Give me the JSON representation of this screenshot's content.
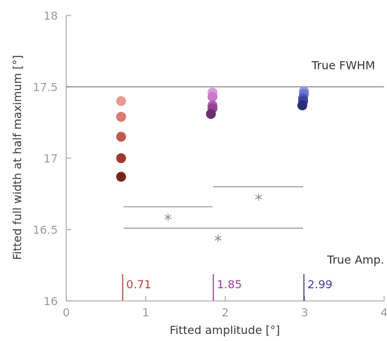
{
  "chart_data": {
    "type": "scatter",
    "xlabel": "Fitted amplitude [°]",
    "ylabel": "Fitted full width at half maximum [°]",
    "xlim": [
      0,
      4
    ],
    "ylim": [
      16,
      18
    ],
    "x_ticks": [
      0,
      1,
      2,
      3,
      4
    ],
    "y_ticks": [
      16,
      16.5,
      17,
      17.5,
      18
    ],
    "x_tick_labels": [
      "0",
      "1",
      "2",
      "3",
      "4"
    ],
    "y_tick_labels": [
      "16",
      "16.5",
      "17",
      "17.5",
      "18"
    ],
    "grid": false,
    "reference_line": {
      "label": "True FWHM",
      "y": 17.5
    },
    "true_amplitude": {
      "label": "True Amp.",
      "markers": [
        {
          "x": 0.71,
          "label": "0.71",
          "color": "#b5423c"
        },
        {
          "x": 1.85,
          "label": "1.85",
          "color": "#9a3d9a"
        },
        {
          "x": 2.99,
          "label": "2.99",
          "color": "#3a3f9a"
        }
      ]
    },
    "series": [
      {
        "color": "#b5423c",
        "points": [
          {
            "x": 0.69,
            "y": 17.4,
            "color": "#e89a90"
          },
          {
            "x": 0.69,
            "y": 17.29,
            "color": "#d9796f"
          },
          {
            "x": 0.69,
            "y": 17.15,
            "color": "#c05a50"
          },
          {
            "x": 0.69,
            "y": 17.0,
            "color": "#a0392f"
          },
          {
            "x": 0.69,
            "y": 16.87,
            "color": "#7a2418"
          }
        ]
      },
      {
        "color": "#9a3d9a",
        "points": [
          {
            "x": 1.84,
            "y": 17.46,
            "color": "#d99ad9"
          },
          {
            "x": 1.84,
            "y": 17.43,
            "color": "#c67bc8"
          },
          {
            "x": 1.84,
            "y": 17.37,
            "color": "#ac5fae"
          },
          {
            "x": 1.84,
            "y": 17.35,
            "color": "#8e4592"
          },
          {
            "x": 1.82,
            "y": 17.31,
            "color": "#6e2d72"
          }
        ]
      },
      {
        "color": "#3a3f9a",
        "points": [
          {
            "x": 2.99,
            "y": 17.47,
            "color": "#8e96e0"
          },
          {
            "x": 2.99,
            "y": 17.45,
            "color": "#6e76cc"
          },
          {
            "x": 2.98,
            "y": 17.42,
            "color": "#5058b4"
          },
          {
            "x": 2.98,
            "y": 17.4,
            "color": "#3a4098"
          },
          {
            "x": 2.97,
            "y": 17.37,
            "color": "#2a2e78"
          }
        ]
      }
    ],
    "significance_bars": [
      {
        "x1": 0.72,
        "x2": 1.84,
        "y": 16.66,
        "star_x": 1.28,
        "star_y": 16.58,
        "label": "*"
      },
      {
        "x1": 0.72,
        "x2": 2.98,
        "y": 16.51,
        "star_x": 1.91,
        "star_y": 16.43,
        "label": "*"
      },
      {
        "x1": 1.85,
        "x2": 2.98,
        "y": 16.8,
        "star_x": 2.42,
        "star_y": 16.72,
        "label": "*"
      }
    ],
    "colors": {
      "axis": "#a8a8a8",
      "reference_line": "#7a7a7a",
      "significance": "#8a8a8a"
    }
  }
}
